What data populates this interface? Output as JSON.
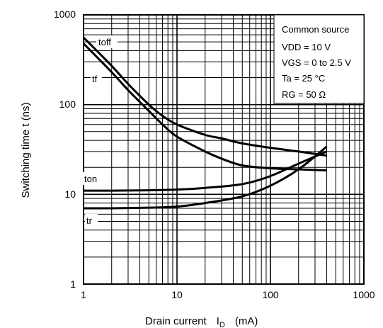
{
  "chart_data": {
    "type": "line",
    "x_scale": "log",
    "y_scale": "log",
    "xlim": [
      1,
      1000
    ],
    "ylim": [
      1,
      1000
    ],
    "grid": true,
    "xlabel": "Drain current",
    "xlabel_symbol": "I",
    "xlabel_subscript": "D",
    "xlabel_unit": "(mA)",
    "ylabel": "Switching time   t   (ns)",
    "x_ticks": [
      1,
      10,
      100,
      1000
    ],
    "x_tick_labels": [
      "1",
      "10",
      "100",
      "1000"
    ],
    "y_ticks": [
      1,
      10,
      100,
      1000
    ],
    "y_tick_labels": [
      "1",
      "10",
      "100",
      "1000"
    ],
    "legend_placement": "top-right",
    "conditions": [
      "Common source",
      "VDD = 10 V",
      "VGS = 0 to 2.5 V",
      "Ta = 25 °C",
      "RG = 50 Ω"
    ],
    "series": [
      {
        "name": "toff",
        "x": [
          1,
          2,
          3,
          5,
          7,
          10,
          20,
          30,
          50,
          100,
          200,
          400
        ],
        "y": [
          560,
          270,
          170,
          100,
          75,
          60,
          46,
          42,
          37,
          33,
          30,
          27
        ]
      },
      {
        "name": "tf",
        "x": [
          1,
          2,
          3,
          5,
          7,
          10,
          20,
          30,
          50,
          100,
          200,
          400
        ],
        "y": [
          480,
          230,
          145,
          85,
          60,
          44,
          30,
          25,
          21,
          19.5,
          19,
          18.5
        ]
      },
      {
        "name": "ton",
        "x": [
          1,
          2,
          5,
          10,
          20,
          50,
          100,
          200,
          400
        ],
        "y": [
          11,
          11,
          11.1,
          11.3,
          11.8,
          13,
          16,
          22,
          30
        ]
      },
      {
        "name": "tr",
        "x": [
          1,
          2,
          5,
          10,
          20,
          50,
          100,
          200,
          400
        ],
        "y": [
          7,
          7,
          7.1,
          7.3,
          8,
          9.5,
          12.5,
          19,
          34
        ]
      }
    ],
    "series_labels": [
      "toff",
      "tf",
      "ton",
      "tr"
    ]
  }
}
